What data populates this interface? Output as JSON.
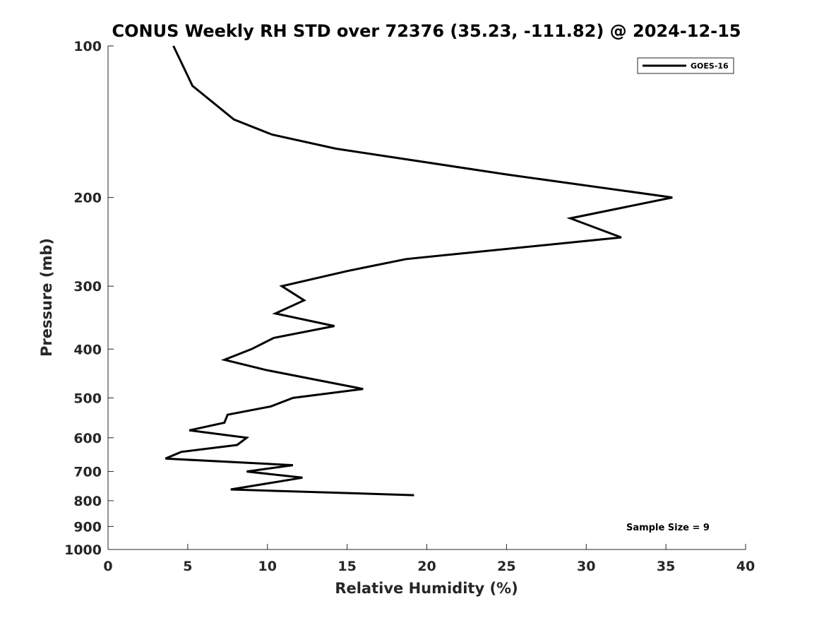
{
  "chart_data": {
    "type": "line",
    "title": "CONUS Weekly RH STD over 72376 (35.23, -111.82) @ 2024-12-15",
    "xlabel": "Relative Humidity (%)",
    "ylabel": "Pressure (mb)",
    "xlim": [
      0,
      40
    ],
    "ylim": [
      100,
      1000
    ],
    "y_scale": "log",
    "y_reversed": true,
    "grid": false,
    "legend_position": "top-right",
    "x_ticks": [
      "0",
      "5",
      "10",
      "15",
      "20",
      "25",
      "30",
      "35",
      "40"
    ],
    "y_ticks": [
      "100",
      "200",
      "300",
      "400",
      "500",
      "600",
      "700",
      "800",
      "900",
      "1000"
    ],
    "series": [
      {
        "name": "GOES-16",
        "color": "#000000",
        "points": [
          [
            4.1,
            100
          ],
          [
            5.3,
            120
          ],
          [
            7.9,
            140
          ],
          [
            10.3,
            150
          ],
          [
            14.3,
            160
          ],
          [
            25.0,
            180
          ],
          [
            35.4,
            200
          ],
          [
            29.0,
            220
          ],
          [
            32.2,
            240
          ],
          [
            18.7,
            265
          ],
          [
            15.0,
            280
          ],
          [
            10.9,
            300
          ],
          [
            12.3,
            320
          ],
          [
            10.5,
            340
          ],
          [
            14.2,
            360
          ],
          [
            10.4,
            380
          ],
          [
            9.0,
            400
          ],
          [
            7.3,
            420
          ],
          [
            9.9,
            440
          ],
          [
            13.0,
            460
          ],
          [
            16.0,
            480
          ],
          [
            11.6,
            500
          ],
          [
            10.2,
            520
          ],
          [
            7.5,
            540
          ],
          [
            7.3,
            560
          ],
          [
            5.1,
            580
          ],
          [
            8.7,
            600
          ],
          [
            8.1,
            620
          ],
          [
            4.6,
            640
          ],
          [
            3.6,
            660
          ],
          [
            11.6,
            680
          ],
          [
            8.7,
            700
          ],
          [
            12.2,
            720
          ],
          [
            7.7,
            760
          ],
          [
            19.2,
            780
          ]
        ]
      }
    ],
    "annotations": [
      "Sample Size = 9"
    ]
  }
}
